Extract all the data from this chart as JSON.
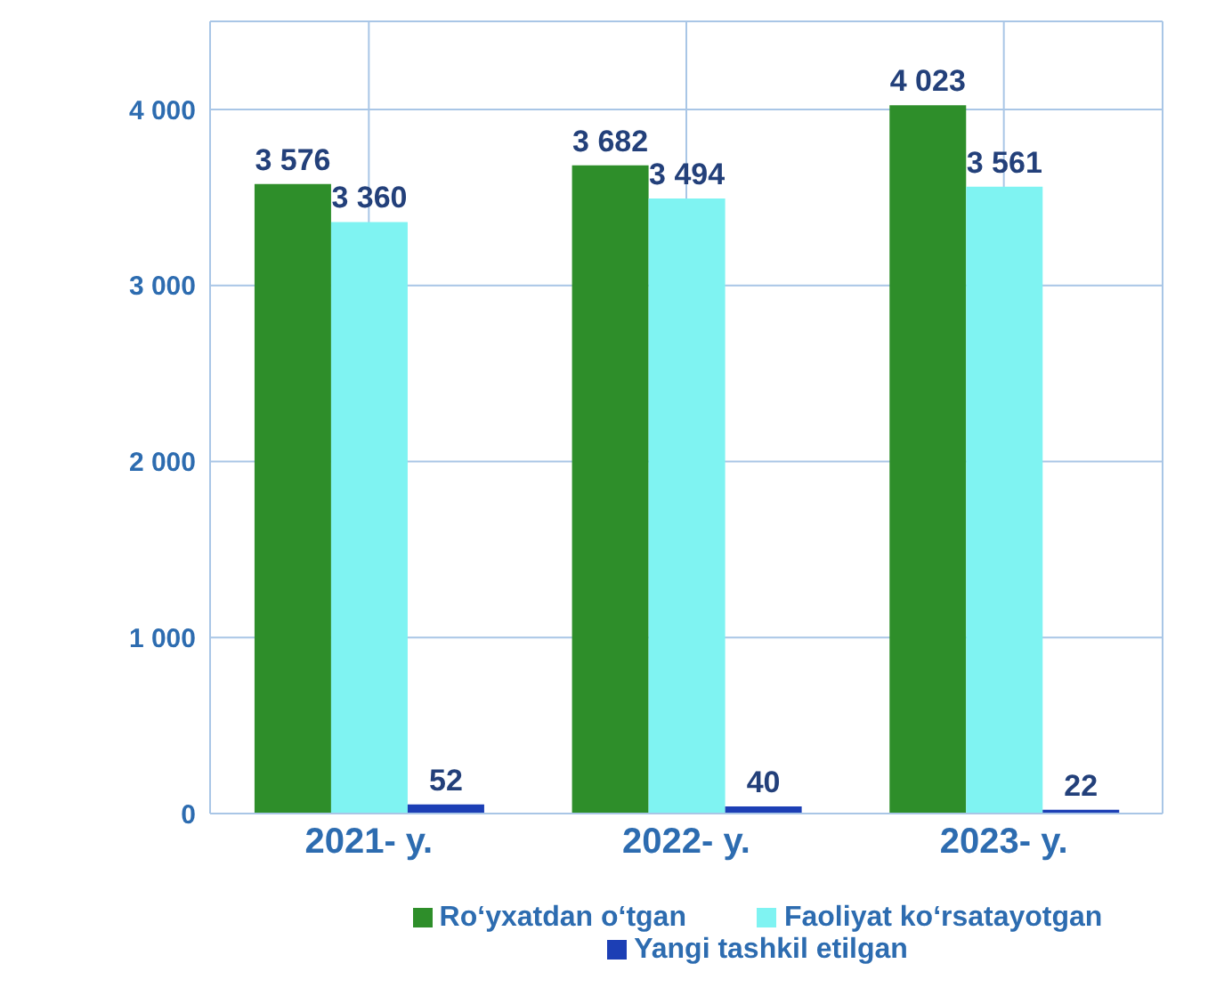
{
  "chart_data": {
    "type": "bar",
    "categories": [
      "2021- y.",
      "2022- y.",
      "2023- y."
    ],
    "series": [
      {
        "name": "Ro‘yxatdan o‘tgan",
        "color": "#2e8e2a",
        "values": [
          3576,
          3682,
          4023
        ],
        "value_labels": [
          "3 576",
          "3 682",
          "4 023"
        ]
      },
      {
        "name": "Faoliyat ko‘rsatayotgan",
        "color": "#7ff3f2",
        "values": [
          3360,
          3494,
          3561
        ],
        "value_labels": [
          "3 360",
          "3 494",
          "3 561"
        ]
      },
      {
        "name": "Yangi tashkil etilgan",
        "color": "#1c3fb5",
        "values": [
          52,
          40,
          22
        ],
        "value_labels": [
          "52",
          "40",
          "22"
        ]
      }
    ],
    "ylim": [
      0,
      4500
    ],
    "yticks": [
      0,
      {
        "value": 1000,
        "label": "1 000"
      },
      {
        "value": 2000,
        "label": "2 000"
      },
      {
        "value": 3000,
        "label": "3 000"
      },
      {
        "value": 4000,
        "label": "4 000"
      }
    ],
    "grid": true,
    "legend": "bottom"
  }
}
